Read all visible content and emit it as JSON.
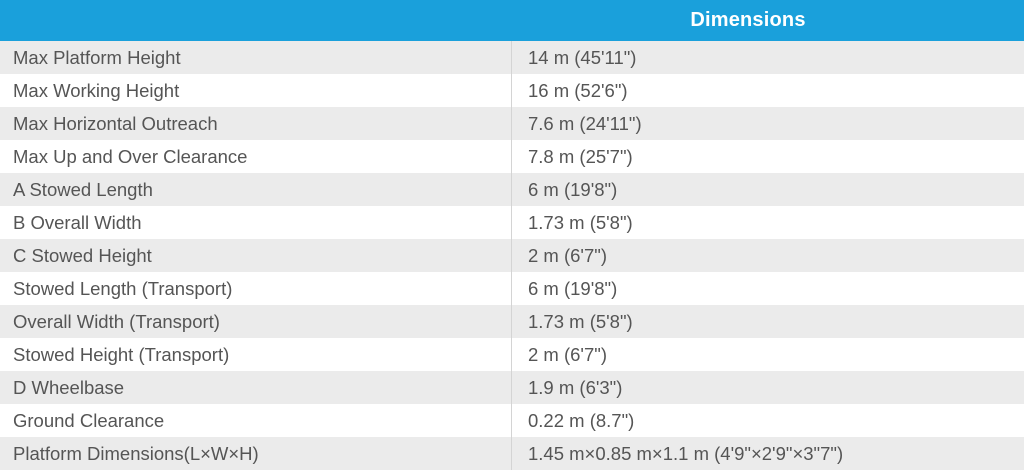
{
  "table": {
    "header": "Dimensions",
    "rows": [
      {
        "label": "Max Platform Height",
        "value": "14 m (45'11\")"
      },
      {
        "label": "Max Working Height",
        "value": "16 m (52'6\")"
      },
      {
        "label": "Max Horizontal Outreach",
        "value": "7.6 m (24'11\")"
      },
      {
        "label": "Max Up and Over Clearance",
        "value": "7.8 m (25'7\")"
      },
      {
        "label": "A Stowed Length",
        "value": "6 m (19'8\")"
      },
      {
        "label": "B Overall Width",
        "value": "1.73 m (5'8\")"
      },
      {
        "label": "C Stowed Height",
        "value": "2 m (6'7\")"
      },
      {
        "label": "Stowed Length (Transport)",
        "value": "6 m (19'8\")"
      },
      {
        "label": "Overall Width (Transport)",
        "value": "1.73 m (5'8\")"
      },
      {
        "label": "Stowed Height (Transport)",
        "value": "2 m (6'7\")"
      },
      {
        "label": "D Wheelbase",
        "value": "1.9 m (6'3\")"
      },
      {
        "label": "Ground Clearance",
        "value": "0.22 m (8.7\")"
      },
      {
        "label": "Platform Dimensions(L×W×H)",
        "value": "1.45 m×0.85 m×1.1 m (4'9\"×2'9\"×3\"7\")"
      }
    ]
  },
  "colors": {
    "header_bg": "#1aa0db",
    "header_text": "#ffffff",
    "row_alt_bg": "#ebebeb",
    "row_bg": "#ffffff",
    "text": "#555555"
  }
}
